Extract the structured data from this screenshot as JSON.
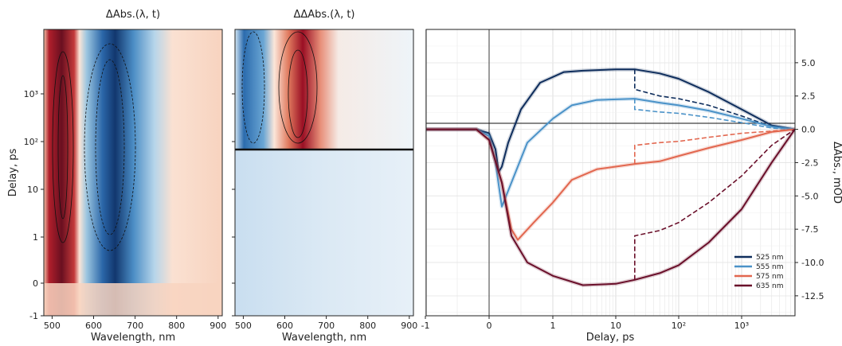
{
  "colors": {
    "c525": "#0e2d5c",
    "c555": "#4a92c8",
    "c575": "#e2674f",
    "c635": "#6a0f2a",
    "map_pos": "#9b0d23",
    "map_neg": "#1f4f8c"
  },
  "chart_data": [
    {
      "type": "heatmap",
      "title": "ΔAbs.(λ, t)",
      "xlabel": "Wavelength, nm",
      "ylabel": "Delay, ps",
      "x_range": [
        480,
        910
      ],
      "y_scale": "linear below 1 ps, log above 1 ps",
      "x_ticks": [
        "500",
        "600",
        "700",
        "800",
        "900"
      ],
      "y_ticks": [
        "-1",
        "0",
        "1",
        "10",
        "10²",
        "10³"
      ],
      "features": [
        {
          "name": "positive band",
          "wavelength_nm": 525,
          "sign": "positive",
          "delay_range": [
            0,
            3000
          ]
        },
        {
          "name": "negative band",
          "wavelength_nm": 625,
          "sign": "negative",
          "delay_range": [
            0,
            3000
          ]
        }
      ]
    },
    {
      "type": "heatmap",
      "title": "ΔΔAbs.(λ, t)",
      "xlabel": "Wavelength, nm",
      "x_range": [
        480,
        910
      ],
      "x_ticks": [
        "500",
        "600",
        "700",
        "800",
        "900"
      ],
      "features": [
        {
          "name": "negative band",
          "wavelength_nm": 520,
          "sign": "negative",
          "delay_range": [
            20,
            3000
          ]
        },
        {
          "name": "positive band",
          "wavelength_nm": 620,
          "sign": "positive",
          "delay_range": [
            20,
            3000
          ]
        },
        {
          "name": "discontinuity",
          "delay_ps": 20
        }
      ]
    },
    {
      "type": "line",
      "xlabel": "Delay, ps",
      "ylabel": "ΔAbs., mOD",
      "x_scale": "linear below 1 ps, log above 1 ps",
      "x_ticks": [
        "-1",
        "0",
        "1",
        "10",
        "10²",
        "10³"
      ],
      "y_ticks": [
        "5.0",
        "2.5",
        "0.0",
        "-2.5",
        "-5.0",
        "-7.5",
        "-10.0",
        "-12.5"
      ],
      "ylim": [
        -14,
        7.5
      ],
      "grid": true,
      "legend_position": "lower-right",
      "series": [
        {
          "name": "525 nm",
          "color": "#0e2d5c",
          "points": [
            [
              -1,
              0
            ],
            [
              -0.5,
              0
            ],
            [
              -0.2,
              0
            ],
            [
              0,
              -0.3
            ],
            [
              0.1,
              -1.5
            ],
            [
              0.15,
              -3.2
            ],
            [
              0.2,
              -2.8
            ],
            [
              0.3,
              -1.0
            ],
            [
              0.5,
              1.5
            ],
            [
              0.8,
              3.5
            ],
            [
              1.5,
              4.3
            ],
            [
              3,
              4.4
            ],
            [
              10,
              4.5
            ],
            [
              20,
              4.5
            ],
            [
              50,
              4.2
            ],
            [
              100,
              3.8
            ],
            [
              300,
              2.8
            ],
            [
              1000,
              1.5
            ],
            [
              3000,
              0.3
            ],
            [
              7000,
              0
            ]
          ],
          "dashed_after_20ps": [
            [
              20,
              3.0
            ],
            [
              50,
              2.5
            ],
            [
              100,
              2.3
            ],
            [
              300,
              1.8
            ],
            [
              1000,
              1.0
            ],
            [
              3000,
              0.2
            ],
            [
              7000,
              0
            ]
          ]
        },
        {
          "name": "555 nm",
          "color": "#4a92c8",
          "points": [
            [
              -1,
              0
            ],
            [
              -0.5,
              0
            ],
            [
              -0.2,
              0
            ],
            [
              0,
              -0.5
            ],
            [
              0.1,
              -2.5
            ],
            [
              0.2,
              -5.8
            ],
            [
              0.35,
              -4.0
            ],
            [
              0.6,
              -1.0
            ],
            [
              1,
              0.8
            ],
            [
              2,
              1.8
            ],
            [
              5,
              2.2
            ],
            [
              20,
              2.3
            ],
            [
              50,
              2.0
            ],
            [
              100,
              1.8
            ],
            [
              300,
              1.4
            ],
            [
              1000,
              0.8
            ],
            [
              3000,
              0.2
            ],
            [
              7000,
              0
            ]
          ],
          "dashed_after_20ps": [
            [
              20,
              1.5
            ],
            [
              50,
              1.3
            ],
            [
              100,
              1.2
            ],
            [
              300,
              0.9
            ],
            [
              1000,
              0.5
            ],
            [
              3000,
              0.1
            ],
            [
              7000,
              0
            ]
          ]
        },
        {
          "name": "575 nm",
          "color": "#e2674f",
          "points": [
            [
              -1,
              0
            ],
            [
              -0.5,
              0
            ],
            [
              -0.2,
              0
            ],
            [
              0,
              -0.8
            ],
            [
              0.2,
              -4.0
            ],
            [
              0.35,
              -7.5
            ],
            [
              0.45,
              -8.3
            ],
            [
              0.7,
              -7.0
            ],
            [
              1,
              -5.5
            ],
            [
              2,
              -3.8
            ],
            [
              5,
              -3.0
            ],
            [
              10,
              -2.8
            ],
            [
              20,
              -2.6
            ],
            [
              50,
              -2.4
            ],
            [
              100,
              -2.0
            ],
            [
              300,
              -1.4
            ],
            [
              1000,
              -0.8
            ],
            [
              3000,
              -0.2
            ],
            [
              7000,
              0
            ]
          ],
          "dashed_after_20ps": [
            [
              20,
              -1.2
            ],
            [
              50,
              -1.0
            ],
            [
              100,
              -0.9
            ],
            [
              300,
              -0.6
            ],
            [
              1000,
              -0.3
            ],
            [
              7000,
              0
            ]
          ]
        },
        {
          "name": "635 nm",
          "color": "#6a0f2a",
          "points": [
            [
              -1,
              0
            ],
            [
              -0.5,
              0
            ],
            [
              -0.2,
              0
            ],
            [
              0,
              -0.8
            ],
            [
              0.2,
              -4.0
            ],
            [
              0.35,
              -8.0
            ],
            [
              0.6,
              -10.0
            ],
            [
              1,
              -11.0
            ],
            [
              3,
              -11.7
            ],
            [
              10,
              -11.6
            ],
            [
              20,
              -11.3
            ],
            [
              50,
              -10.8
            ],
            [
              100,
              -10.2
            ],
            [
              300,
              -8.5
            ],
            [
              1000,
              -6.0
            ],
            [
              3000,
              -2.5
            ],
            [
              7000,
              0
            ]
          ],
          "dashed_after_20ps": [
            [
              20,
              -8.0
            ],
            [
              50,
              -7.6
            ],
            [
              100,
              -7.0
            ],
            [
              300,
              -5.5
            ],
            [
              1000,
              -3.5
            ],
            [
              3000,
              -1.2
            ],
            [
              7000,
              0
            ]
          ]
        }
      ]
    }
  ]
}
